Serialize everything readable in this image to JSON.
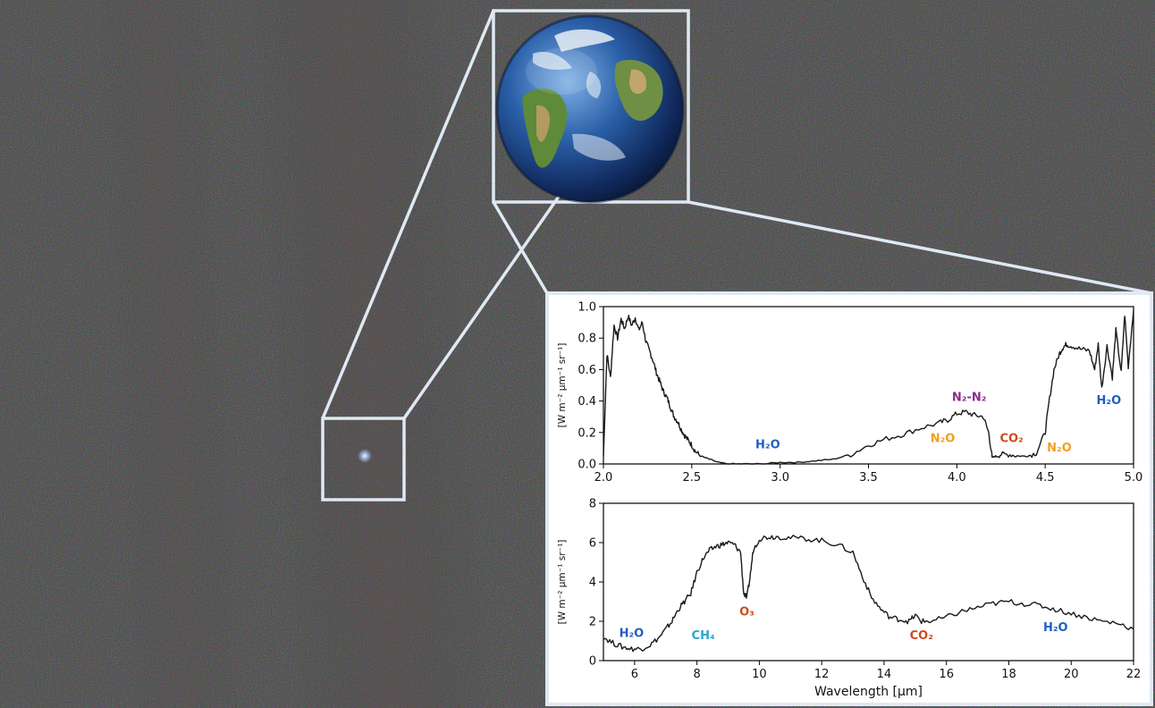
{
  "colors": {
    "background": "#3b3a3c",
    "frame": "#dfe9f3",
    "line": "#1a1a1a",
    "label_blue": "#1f5fbf",
    "label_orange": "#f0a020",
    "label_purple": "#8b2b8b",
    "label_red": "#d04a1c",
    "label_cyan": "#2aa6cf"
  },
  "chart_data": [
    {
      "type": "line",
      "xlim": [
        2.0,
        5.0
      ],
      "ylim": [
        0.0,
        1.0
      ],
      "xticks": [
        2.0,
        2.5,
        3.0,
        3.5,
        4.0,
        4.5,
        5.0
      ],
      "yticks": [
        0.0,
        0.2,
        0.4,
        0.6,
        0.8,
        1.0
      ],
      "tick_labels_x": [
        "2.0",
        "2.5",
        "3.0",
        "3.5",
        "4.0",
        "4.5",
        "5.0"
      ],
      "tick_labels_y": [
        "0.0",
        "0.2",
        "0.4",
        "0.6",
        "0.8",
        "1.0"
      ],
      "ylabel": "[W m⁻² µm⁻¹ sr⁻¹]",
      "xlabel": "",
      "series": [
        {
          "x": [
            2.0,
            2.02,
            2.04,
            2.06,
            2.08,
            2.1,
            2.12,
            2.14,
            2.16,
            2.18,
            2.2,
            2.22,
            2.24,
            2.26,
            2.28,
            2.3,
            2.32,
            2.34,
            2.36,
            2.38,
            2.4,
            2.42,
            2.44,
            2.46,
            2.48,
            2.5,
            2.52,
            2.55,
            2.6,
            2.65,
            2.7,
            2.8,
            2.9,
            3.0,
            3.1,
            3.2,
            3.3,
            3.4,
            3.5,
            3.6,
            3.7,
            3.8,
            3.9,
            3.95,
            4.0,
            4.05,
            4.1,
            4.15,
            4.18,
            4.2,
            4.22,
            4.25,
            4.3,
            4.35,
            4.4,
            4.45,
            4.5,
            4.52,
            4.55,
            4.58,
            4.6,
            4.62,
            4.65,
            4.7,
            4.75,
            4.78,
            4.8,
            4.82,
            4.85,
            4.88,
            4.9,
            4.93,
            4.95,
            4.97,
            5.0
          ],
          "y": [
            0.05,
            0.7,
            0.55,
            0.88,
            0.8,
            0.92,
            0.86,
            0.94,
            0.88,
            0.93,
            0.85,
            0.9,
            0.78,
            0.72,
            0.66,
            0.58,
            0.52,
            0.46,
            0.42,
            0.36,
            0.3,
            0.27,
            0.22,
            0.18,
            0.15,
            0.12,
            0.08,
            0.05,
            0.03,
            0.01,
            0.0,
            0.0,
            0.0,
            0.01,
            0.01,
            0.02,
            0.03,
            0.06,
            0.12,
            0.16,
            0.19,
            0.23,
            0.26,
            0.28,
            0.32,
            0.33,
            0.31,
            0.3,
            0.2,
            0.04,
            0.05,
            0.06,
            0.06,
            0.05,
            0.05,
            0.07,
            0.2,
            0.38,
            0.6,
            0.7,
            0.74,
            0.76,
            0.75,
            0.73,
            0.72,
            0.6,
            0.76,
            0.48,
            0.75,
            0.55,
            0.85,
            0.58,
            0.95,
            0.62,
            0.98
          ]
        }
      ],
      "annotations": [
        {
          "text": "H₂O",
          "x": 2.93,
          "y": 0.1,
          "color": "label_blue"
        },
        {
          "text": "N₂-N₂",
          "x": 4.07,
          "y": 0.4,
          "color": "label_purple"
        },
        {
          "text": "N₂O",
          "x": 3.92,
          "y": 0.14,
          "color": "label_orange"
        },
        {
          "text": "CO₂",
          "x": 4.31,
          "y": 0.14,
          "color": "label_red"
        },
        {
          "text": "N₂O",
          "x": 4.58,
          "y": 0.08,
          "color": "label_orange"
        },
        {
          "text": "H₂O",
          "x": 4.86,
          "y": 0.38,
          "color": "label_blue"
        }
      ]
    },
    {
      "type": "line",
      "xlim": [
        5,
        22
      ],
      "ylim": [
        0,
        8
      ],
      "xticks": [
        6,
        8,
        10,
        12,
        14,
        16,
        18,
        20,
        22
      ],
      "yticks": [
        0,
        2,
        4,
        6,
        8
      ],
      "tick_labels_x": [
        "6",
        "8",
        "10",
        "12",
        "14",
        "16",
        "18",
        "20",
        "22"
      ],
      "tick_labels_y": [
        "0",
        "2",
        "4",
        "6",
        "8"
      ],
      "ylabel": "[W m⁻² µm⁻¹ sr⁻¹]",
      "xlabel": "Wavelength [µm]",
      "series": [
        {
          "x": [
            5.0,
            5.3,
            5.6,
            5.9,
            6.2,
            6.5,
            6.8,
            7.0,
            7.2,
            7.4,
            7.6,
            7.8,
            8.0,
            8.2,
            8.4,
            8.6,
            8.8,
            9.0,
            9.2,
            9.4,
            9.5,
            9.6,
            9.7,
            9.8,
            10.0,
            10.3,
            10.6,
            11.0,
            11.5,
            12.0,
            12.5,
            13.0,
            13.3,
            13.6,
            13.9,
            14.2,
            14.5,
            14.8,
            15.0,
            15.2,
            15.5,
            16.0,
            16.5,
            17.0,
            17.5,
            18.0,
            18.5,
            19.0,
            19.5,
            20.0,
            20.5,
            21.0,
            21.5,
            22.0
          ],
          "y": [
            1.2,
            0.9,
            0.7,
            0.6,
            0.6,
            0.8,
            1.2,
            1.6,
            2.0,
            2.6,
            3.0,
            3.4,
            4.5,
            5.2,
            5.6,
            5.8,
            5.9,
            6.0,
            5.9,
            5.5,
            3.4,
            3.2,
            4.2,
            5.6,
            6.2,
            6.3,
            6.3,
            6.25,
            6.2,
            6.1,
            5.9,
            5.5,
            4.3,
            3.2,
            2.6,
            2.2,
            2.1,
            2.0,
            2.3,
            2.0,
            2.0,
            2.2,
            2.5,
            2.7,
            2.9,
            3.0,
            2.9,
            2.8,
            2.6,
            2.4,
            2.2,
            2.0,
            1.9,
            1.6
          ]
        }
      ],
      "annotations": [
        {
          "text": "H₂O",
          "x": 5.9,
          "y": 1.2,
          "color": "label_blue"
        },
        {
          "text": "CH₄",
          "x": 8.2,
          "y": 1.1,
          "color": "label_cyan"
        },
        {
          "text": "O₃",
          "x": 9.6,
          "y": 2.3,
          "color": "label_red"
        },
        {
          "text": "CO₂",
          "x": 15.2,
          "y": 1.1,
          "color": "label_red"
        },
        {
          "text": "H₂O",
          "x": 19.5,
          "y": 1.5,
          "color": "label_blue"
        }
      ]
    }
  ]
}
